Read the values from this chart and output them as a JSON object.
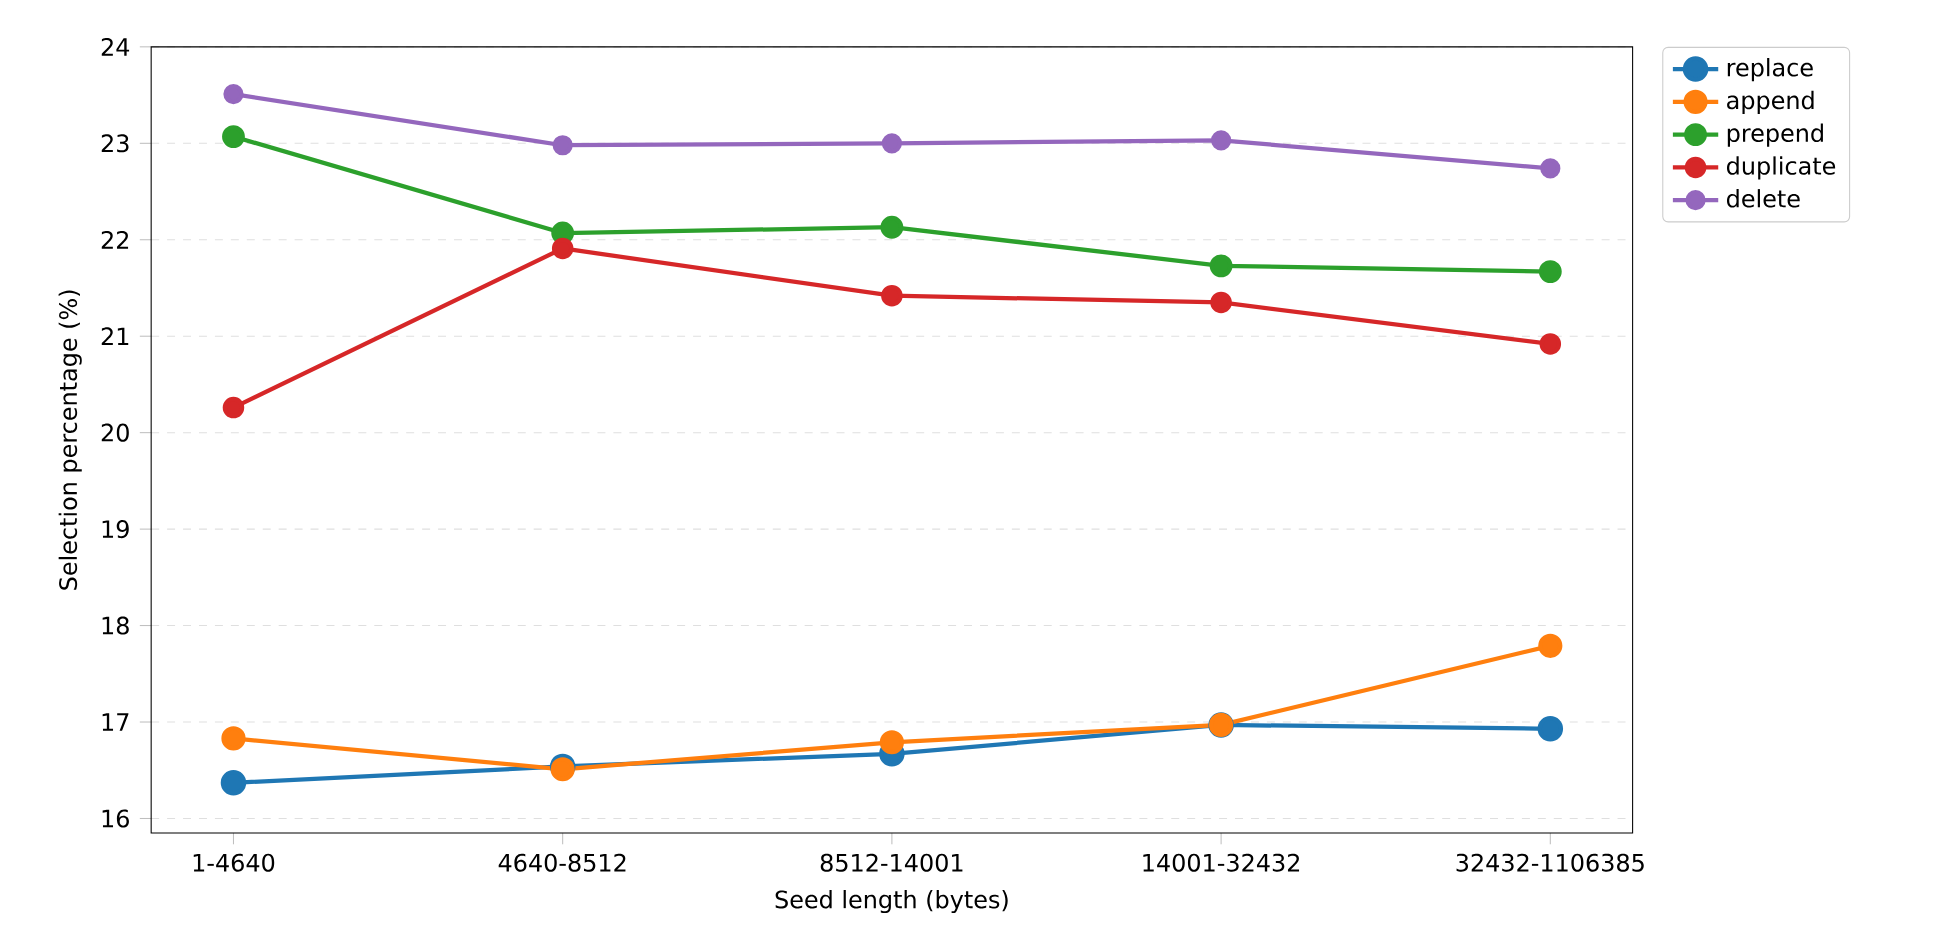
{
  "chart_data": {
    "type": "line",
    "xlabel": "Seed length (bytes)",
    "ylabel": "Selection percentage (%)",
    "categories": [
      "1-4640",
      "4640-8512",
      "8512-14001",
      "14001-32432",
      "32432-1106385"
    ],
    "series": [
      {
        "name": "replace",
        "color": "#1f77b4",
        "values": [
          16.37,
          16.54,
          16.67,
          16.97,
          16.93
        ]
      },
      {
        "name": "append",
        "color": "#ff7f0e",
        "values": [
          16.83,
          16.51,
          16.79,
          16.97,
          17.79
        ]
      },
      {
        "name": "prepend",
        "color": "#2ca02c",
        "values": [
          23.07,
          22.07,
          22.13,
          21.73,
          21.67
        ]
      },
      {
        "name": "duplicate",
        "color": "#d62728",
        "values": [
          20.26,
          21.91,
          21.42,
          21.35,
          20.92
        ]
      },
      {
        "name": "delete",
        "color": "#9467bd",
        "values": [
          23.51,
          22.98,
          23.0,
          23.03,
          22.74
        ]
      }
    ],
    "ylim": [
      15.85,
      24
    ],
    "yticks": [
      16,
      17,
      18,
      19,
      20,
      21,
      22,
      23,
      24
    ],
    "grid": "y",
    "legend": "right",
    "marker": "circle",
    "line_style": "solid"
  }
}
